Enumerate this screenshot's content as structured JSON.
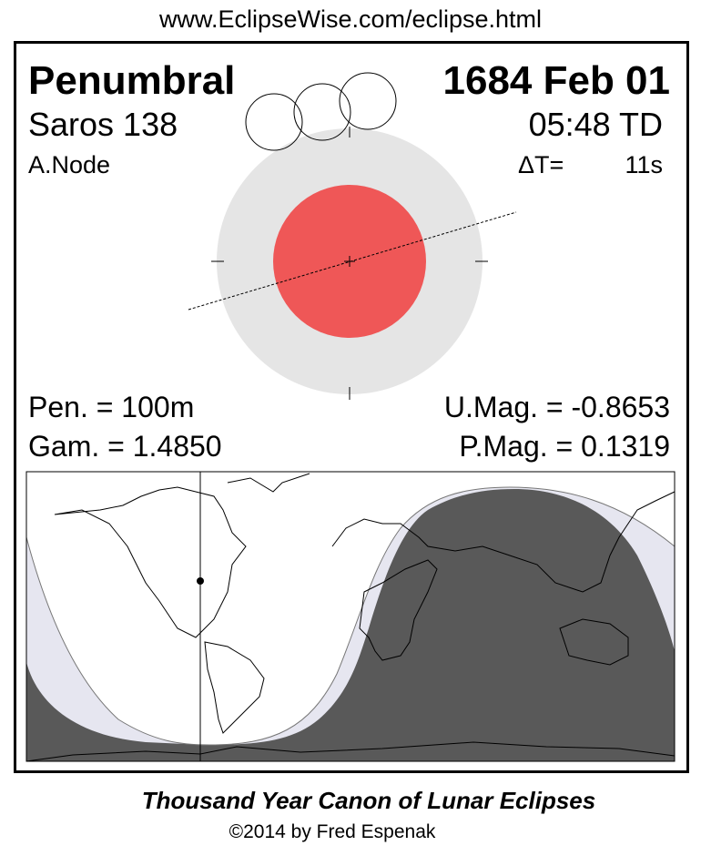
{
  "url": "www.EclipseWise.com/eclipse.html",
  "eclipse_type": "Penumbral",
  "date": "1684 Feb 01",
  "saros": "Saros 138",
  "time": "05:48 TD",
  "node": "A.Node",
  "delta_t_label": "ΔT=",
  "delta_t_value": "11s",
  "pen_duration": "Pen. = 100m",
  "gamma": "Gam. = 1.4850",
  "umbral_mag": "U.Mag. = -0.8653",
  "penumbral_mag": "P.Mag. = 0.1319",
  "footer_title": "Thousand Year Canon of Lunar Eclipses",
  "copyright": "©2014 by Fred Espenak",
  "colors": {
    "umbra": "#ef5757",
    "penumbra": "#e5e5e5",
    "night": "#595959",
    "penumbral_zone": "#e6e6f0"
  }
}
